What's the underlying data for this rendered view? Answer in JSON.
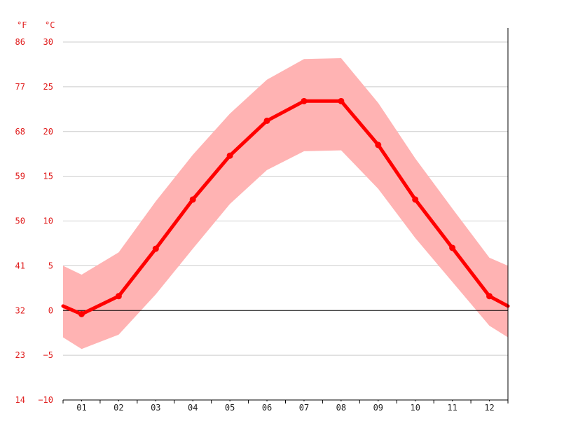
{
  "chart_data": {
    "type": "area",
    "categories": [
      "01",
      "02",
      "03",
      "04",
      "05",
      "06",
      "07",
      "08",
      "09",
      "10",
      "11",
      "12"
    ],
    "series": [
      {
        "role": "average",
        "values": [
          -0.4,
          1.6,
          6.9,
          12.4,
          17.3,
          21.2,
          23.4,
          23.4,
          18.5,
          12.4,
          7.0,
          1.6
        ]
      },
      {
        "role": "max",
        "values": [
          4.0,
          6.5,
          12.2,
          17.4,
          22.0,
          25.8,
          28.1,
          28.2,
          23.2,
          17.0,
          11.4,
          5.9
        ]
      },
      {
        "role": "min",
        "values": [
          -4.3,
          -2.7,
          1.8,
          6.9,
          11.9,
          15.7,
          17.8,
          17.9,
          13.6,
          8.1,
          3.2,
          -1.7
        ]
      }
    ],
    "edge_values": {
      "avg": [
        0.5,
        0.5
      ],
      "max": [
        5.0,
        5.0
      ],
      "min": [
        -3.0,
        -3.0
      ]
    },
    "axis_labels": {
      "fahrenheit": "°F",
      "celsius": "°C"
    },
    "y_ticks_celsius": [
      "30",
      "25",
      "20",
      "15",
      "10",
      "5",
      "0",
      "−5",
      "−10"
    ],
    "y_ticks_fahrenheit": [
      "86",
      "77",
      "68",
      "59",
      "50",
      "41",
      "32",
      "23",
      "14"
    ],
    "ylim": [
      -10,
      30
    ],
    "grid": true,
    "colors": {
      "line": "#ff0000",
      "band": "#ffb3b3",
      "text": "#e01b1b",
      "axis": "#000000",
      "grid": "#cccccc"
    }
  }
}
